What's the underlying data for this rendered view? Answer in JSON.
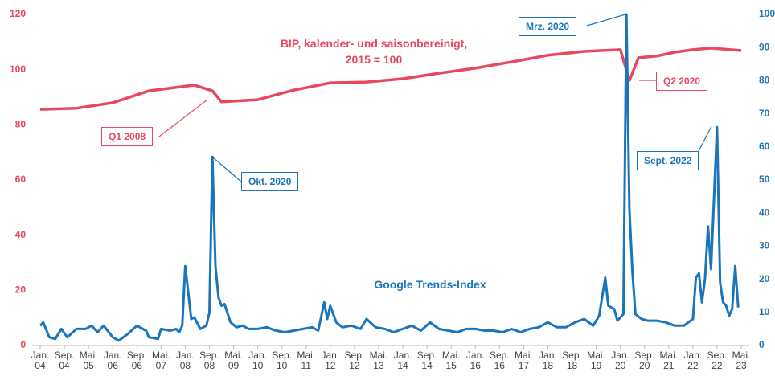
{
  "chart_data": {
    "type": "line",
    "ylim": [
      0,
      120
    ],
    "yticks": [
      0,
      20,
      40,
      60,
      80,
      100,
      120
    ],
    "y2lim": [
      0,
      100
    ],
    "y2ticks": [
      0,
      10,
      20,
      30,
      40,
      50,
      60,
      70,
      80,
      90,
      100
    ],
    "xlim": [
      "2004-01",
      "2023-05"
    ],
    "xticks": [
      {
        "value": "2004-01",
        "label": "Jan.\n04"
      },
      {
        "value": "2004-09",
        "label": "Sep.\n04"
      },
      {
        "value": "2005-05",
        "label": "Mai.\n05"
      },
      {
        "value": "2006-01",
        "label": "Jan.\n06"
      },
      {
        "value": "2006-09",
        "label": "Sep.\n06"
      },
      {
        "value": "2007-05",
        "label": "Mai.\n07"
      },
      {
        "value": "2008-01",
        "label": "Jan.\n08"
      },
      {
        "value": "2008-09",
        "label": "Sep.\n08"
      },
      {
        "value": "2009-05",
        "label": "Mai.\n09"
      },
      {
        "value": "2010-01",
        "label": "Jan.\n10"
      },
      {
        "value": "2010-09",
        "label": "Sep.\n10"
      },
      {
        "value": "2011-05",
        "label": "Mai.\n11"
      },
      {
        "value": "2012-01",
        "label": "Jan.\n12"
      },
      {
        "value": "2012-09",
        "label": "Sep.\n12"
      },
      {
        "value": "2013-05",
        "label": "Mai.\n13"
      },
      {
        "value": "2014-01",
        "label": "Jan.\n14"
      },
      {
        "value": "2014-09",
        "label": "Sep.\n14"
      },
      {
        "value": "2015-05",
        "label": "Mai.\n15"
      },
      {
        "value": "2016-01",
        "label": "Jan.\n16"
      },
      {
        "value": "2016-09",
        "label": "Sep.\n16"
      },
      {
        "value": "2017-05",
        "label": "Mai.\n17"
      },
      {
        "value": "2018-01",
        "label": "Jan.\n18"
      },
      {
        "value": "2018-09",
        "label": "Sep.\n18"
      },
      {
        "value": "2019-05",
        "label": "Mai.\n19"
      },
      {
        "value": "2020-01",
        "label": "Jan.\n20"
      },
      {
        "value": "2020-09",
        "label": "Sep.\n20"
      },
      {
        "value": "2021-05",
        "label": "Mai.\n21"
      },
      {
        "value": "2022-01",
        "label": "Jan.\n22"
      },
      {
        "value": "2022-09",
        "label": "Sep.\n22"
      },
      {
        "value": "2023-05",
        "label": "Mai.\n23"
      }
    ],
    "series": [
      {
        "name": "BIP, kalender- und saisonbereinigt,\n2015 = 100",
        "color": "#e8485e",
        "axis": "y",
        "x": [
          "2004-01",
          "2005-01",
          "2006-01",
          "2007-01",
          "2008-04",
          "2008-10",
          "2009-01",
          "2010-01",
          "2011-01",
          "2012-01",
          "2013-01",
          "2014-01",
          "2015-01",
          "2016-01",
          "2017-01",
          "2018-01",
          "2019-01",
          "2020-01",
          "2020-04",
          "2020-07",
          "2021-01",
          "2021-07",
          "2022-01",
          "2022-07",
          "2023-05"
        ],
        "values": [
          85.6,
          86,
          88,
          92.3,
          94.4,
          92.3,
          88.3,
          89.1,
          92.6,
          95.2,
          95.5,
          96.7,
          98.7,
          100.5,
          102.8,
          105.2,
          106.6,
          107.2,
          96.1,
          104.3,
          104.9,
          106.3,
          107.2,
          107.8,
          106.9
        ]
      },
      {
        "name": "Google Trends-Index",
        "color": "#1a75bb",
        "axis": "y2",
        "x": [
          "2004-01",
          "2004-02",
          "2004-04",
          "2004-06",
          "2004-08",
          "2004-10",
          "2005-01",
          "2005-04",
          "2005-06",
          "2005-08",
          "2005-10",
          "2006-01",
          "2006-03",
          "2006-06",
          "2006-09",
          "2006-12",
          "2007-01",
          "2007-04",
          "2007-05",
          "2007-08",
          "2007-10",
          "2007-11",
          "2007-12",
          "2008-01",
          "2008-03",
          "2008-04",
          "2008-06",
          "2008-08",
          "2008-09",
          "2008-10",
          "2008-11",
          "2008-12",
          "2009-01",
          "2009-02",
          "2009-04",
          "2009-06",
          "2009-08",
          "2009-10",
          "2010-01",
          "2010-04",
          "2010-07",
          "2010-10",
          "2011-01",
          "2011-04",
          "2011-07",
          "2011-09",
          "2011-11",
          "2011-12",
          "2012-01",
          "2012-03",
          "2012-05",
          "2012-08",
          "2012-11",
          "2013-01",
          "2013-04",
          "2013-07",
          "2013-10",
          "2014-01",
          "2014-04",
          "2014-07",
          "2014-10",
          "2015-01",
          "2015-04",
          "2015-07",
          "2015-10",
          "2016-01",
          "2016-04",
          "2016-07",
          "2016-10",
          "2017-01",
          "2017-04",
          "2017-07",
          "2017-10",
          "2018-01",
          "2018-04",
          "2018-07",
          "2018-10",
          "2019-01",
          "2019-04",
          "2019-06",
          "2019-08",
          "2019-09",
          "2019-11",
          "2019-12",
          "2020-01",
          "2020-02",
          "2020-03",
          "2020-04",
          "2020-05",
          "2020-06",
          "2020-08",
          "2020-10",
          "2021-01",
          "2021-04",
          "2021-07",
          "2021-10",
          "2022-01",
          "2022-02",
          "2022-03",
          "2022-04",
          "2022-05",
          "2022-06",
          "2022-07",
          "2022-09",
          "2022-10",
          "2022-11",
          "2022-12",
          "2023-01",
          "2023-02",
          "2023-03",
          "2023-04"
        ],
        "values": [
          6,
          7,
          2.5,
          2,
          5,
          2.5,
          5,
          5,
          6,
          4,
          6,
          2.5,
          1.5,
          3.5,
          6,
          4.5,
          2.5,
          2,
          5,
          4.5,
          5,
          4,
          6,
          24,
          8,
          8.5,
          5,
          6,
          10,
          57,
          24,
          14.5,
          12,
          12.5,
          7,
          5.5,
          6,
          5,
          5,
          5.5,
          4.5,
          4,
          4.5,
          5,
          5.5,
          4.5,
          13,
          8,
          12,
          7,
          5.5,
          6,
          5,
          8,
          5.5,
          5,
          4,
          5,
          6,
          4.5,
          7,
          5,
          4.5,
          4,
          5,
          5,
          4.5,
          4.5,
          4,
          5,
          4,
          5,
          5.5,
          7,
          5.5,
          5.5,
          7,
          8,
          6,
          9,
          20.5,
          12,
          11,
          7.5,
          8.5,
          9.5,
          100,
          41,
          22,
          9.5,
          8,
          7.5,
          7.5,
          7,
          6,
          6,
          8,
          20.5,
          21.8,
          13,
          20,
          36,
          23,
          66,
          19,
          13,
          12,
          9,
          11,
          24,
          11.5
        ]
      }
    ],
    "annotations": [
      {
        "text": "Q1 2008",
        "series": 0
      },
      {
        "text": "Q2 2020",
        "series": 0
      },
      {
        "text": "Mrz. 2020",
        "series": 1
      },
      {
        "text": "Okt. 2020",
        "series": 1
      },
      {
        "text": "Sept. 2022",
        "series": 1
      }
    ]
  }
}
